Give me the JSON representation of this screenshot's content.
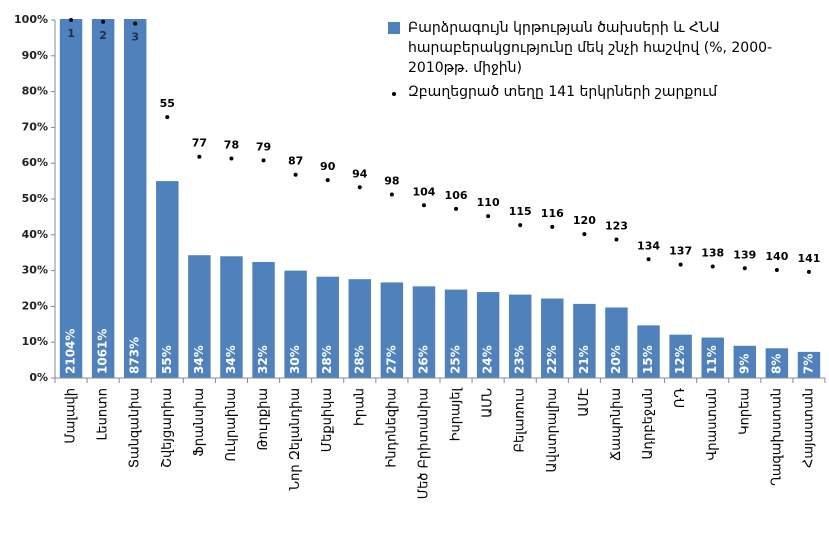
{
  "chart_data": {
    "type": "bar",
    "categories": [
      "Մալավի",
      "Լեսոտո",
      "Տանզանիա",
      "Շվեյցարիա",
      "Ֆրանսիա",
      "Ուկրաինա",
      "Թուրքիա",
      "Նոր Զելանդիա",
      "Մեքսիկա",
      "Իրան",
      "Ինդոնեզիա",
      "Մեծ Բրիտանիա",
      "Իսրայել",
      "ԱՄՆ",
      "Բելառուս",
      "Ավստրալիա",
      "ԱՄԷ",
      "Ճապոնիա",
      "Ադրբեջան",
      "ՌԴ",
      "Վրաստան",
      "Կորեա",
      "Ղազախստան",
      "Հայաստան"
    ],
    "series": [
      {
        "name": "Բարձրագույն կրթության ծախսերի և ՀՆԱ հարաբերակցությունը մեկ շնչի հաշվով (%, 2000-2010թթ. միջին)",
        "color": "#4f81bd",
        "values": [
          2104,
          1061,
          873,
          55,
          34.3,
          34,
          32.4,
          30,
          28.3,
          27.6,
          26.7,
          25.6,
          24.7,
          24,
          23.3,
          22.2,
          20.7,
          19.7,
          14.7,
          12.1,
          11.3,
          9,
          8.3,
          7.3
        ],
        "value_labels": [
          "2104%",
          "1061%",
          "873%",
          "55%",
          "34%",
          "34%",
          "32%",
          "30%",
          "28%",
          "28%",
          "27%",
          "26%",
          "25%",
          "24%",
          "23%",
          "22%",
          "21%",
          "20%",
          "15%",
          "12%",
          "11%",
          "9%",
          "8%",
          "7%"
        ]
      },
      {
        "name": "Զբաղեցրած տեղը 141 երկրների շարքում",
        "type": "scatter",
        "color": "#000000",
        "axis": "y2",
        "values": [
          1,
          2,
          3,
          55,
          77,
          78,
          79,
          87,
          90,
          94,
          98,
          104,
          106,
          110,
          115,
          116,
          120,
          123,
          134,
          137,
          138,
          139,
          140,
          141
        ]
      }
    ],
    "ylim": [
      0,
      100
    ],
    "yticks": [
      {
        "value": 0,
        "label": "0%"
      },
      {
        "value": 10,
        "label": "10%"
      },
      {
        "value": 20,
        "label": "20%"
      },
      {
        "value": 30,
        "label": "30%"
      },
      {
        "value": 40,
        "label": "40%"
      },
      {
        "value": 50,
        "label": "50%"
      },
      {
        "value": 60,
        "label": "60%"
      },
      {
        "value": 70,
        "label": "70%"
      },
      {
        "value": 80,
        "label": "80%"
      },
      {
        "value": 90,
        "label": "90%"
      },
      {
        "value": 100,
        "label": "100%"
      }
    ],
    "y2lim": [
      200,
      1
    ],
    "legend": "top-right"
  }
}
